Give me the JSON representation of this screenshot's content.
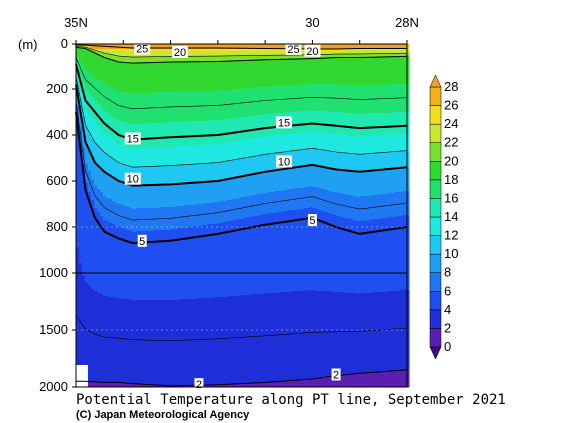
{
  "chart_data": {
    "type": "heatmap",
    "title": "Potential Temperature along PT line, September 2021",
    "credit": "(C) Japan Meteorological Agency",
    "x_axis": {
      "ticks": [
        "35N",
        "30",
        "28N"
      ],
      "values": [
        35,
        30,
        28
      ]
    },
    "y_axis": {
      "unit": "(m)",
      "ticks": [
        "0",
        "200",
        "400",
        "600",
        "800",
        "1000",
        "1500",
        "2000"
      ],
      "values": [
        0,
        200,
        400,
        600,
        800,
        1000,
        1500,
        2000
      ],
      "reversed": true
    },
    "colorbar": {
      "levels": [
        0,
        2,
        4,
        6,
        8,
        10,
        12,
        14,
        16,
        18,
        20,
        22,
        24,
        26,
        28
      ],
      "tick_labels": [
        "0",
        "2",
        "4",
        "6",
        "8",
        "10",
        "12",
        "14",
        "16",
        "18",
        "20",
        "22",
        "24",
        "26",
        "28"
      ],
      "colors": [
        "#5a1fb0",
        "#1f2fd8",
        "#1f4ff0",
        "#1f78f2",
        "#1fa0f2",
        "#1fc8f2",
        "#1fe8e0",
        "#1fe8b0",
        "#20e070",
        "#30d830",
        "#7ce030",
        "#c8e830",
        "#f0e020",
        "#f0b020"
      ]
    },
    "contour_labels": [
      {
        "text": "25",
        "lat": 33.6,
        "depth": 20
      },
      {
        "text": "20",
        "lat": 32.8,
        "depth": 35
      },
      {
        "text": "25",
        "lat": 30.4,
        "depth": 22
      },
      {
        "text": "20",
        "lat": 30.0,
        "depth": 30
      },
      {
        "text": "15",
        "lat": 30.6,
        "depth": 345
      },
      {
        "text": "15",
        "lat": 33.8,
        "depth": 415
      },
      {
        "text": "10",
        "lat": 30.6,
        "depth": 515
      },
      {
        "text": "10",
        "lat": 33.8,
        "depth": 590
      },
      {
        "text": "5",
        "lat": 30.0,
        "depth": 770
      },
      {
        "text": "5",
        "lat": 33.6,
        "depth": 860
      },
      {
        "text": "2",
        "lat": 32.4,
        "depth": 1975
      },
      {
        "text": "2",
        "lat": 29.5,
        "depth": 1890
      }
    ],
    "isotherm_depths": {
      "lat": [
        35.0,
        34.8,
        34.6,
        34.4,
        34.1,
        33.8,
        33.0,
        32.0,
        31.0,
        30.0,
        29.5,
        29.0,
        28.0
      ],
      "t25": [
        5,
        5,
        8,
        10,
        14,
        18,
        18,
        18,
        20,
        22,
        22,
        20,
        20
      ],
      "t20": [
        15,
        20,
        40,
        60,
        80,
        85,
        80,
        78,
        70,
        65,
        60,
        60,
        55
      ],
      "t15": [
        90,
        250,
        300,
        350,
        400,
        420,
        410,
        400,
        370,
        350,
        360,
        370,
        360
      ],
      "t10": [
        180,
        430,
        520,
        560,
        600,
        620,
        615,
        600,
        560,
        530,
        550,
        560,
        540
      ],
      "t5": [
        300,
        640,
        760,
        820,
        850,
        870,
        860,
        830,
        790,
        760,
        800,
        830,
        800
      ],
      "t2": [
        1950,
        1950,
        1955,
        1960,
        1960,
        1970,
        1990,
        1980,
        1960,
        1930,
        1900,
        1880,
        1850
      ]
    }
  }
}
